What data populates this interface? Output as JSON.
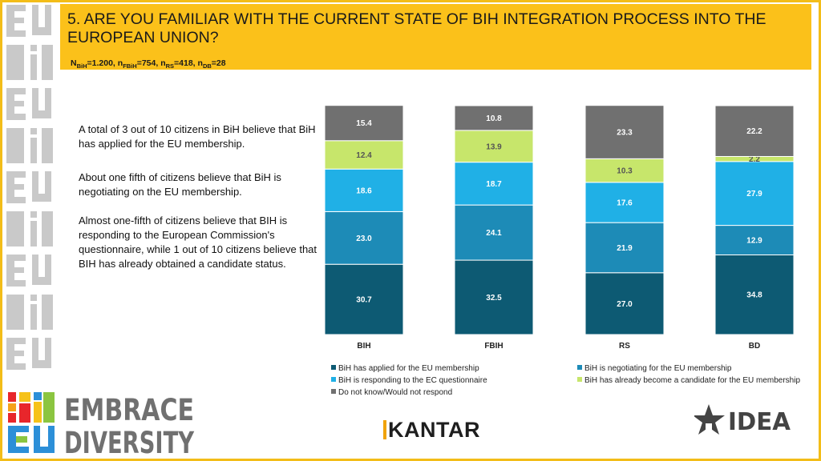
{
  "header": {
    "title": "5. ARE YOU FAMILIAR WITH THE CURRENT STATE OF BIH INTEGRATION PROCESS INTO THE EUROPEAN UNION?",
    "sample": {
      "n_bih_label": "N",
      "n_bih_sub": "BiH",
      "n_bih_value": "=1.200, ",
      "n_fbih_label": "n",
      "n_fbih_sub": "FBiH",
      "n_fbih_value": "=754, ",
      "n_rs_label": "n",
      "n_rs_sub": "RS",
      "n_rs_value": "=418, ",
      "n_db_label": "n",
      "n_db_sub": "DB",
      "n_db_value": "=28"
    }
  },
  "commentary": {
    "p1": "A total of 3 out of 10 citizens in BiH believe that BiH has applied for the EU membership.",
    "p2": "About one fifth of citizens believe that BiH is negotiating on the EU membership.",
    "p3": "Almost one-fifth of citizens believe that BIH is responding to the European Commission's questionnaire, while 1 out of 10 citizens believe that BIH has already obtained a candidate status."
  },
  "chart_data": {
    "type": "bar",
    "stacked": true,
    "orientation": "vertical",
    "categories": [
      "BIH",
      "FBIH",
      "RS",
      "BD"
    ],
    "ylim": [
      0,
      100
    ],
    "series": [
      {
        "name": "BiH has applied for the EU membership",
        "color": "#0d5a73",
        "values": [
          30.7,
          32.5,
          27.0,
          34.8
        ],
        "labels": [
          "30.7",
          "32.5",
          "27.0",
          "34.8"
        ]
      },
      {
        "name": "BiH is negotiating for the EU membership",
        "color": "#1d8bb7",
        "values": [
          23.0,
          24.1,
          21.9,
          12.9
        ],
        "labels": [
          "23.0",
          "24.1",
          "21.9",
          "12.9"
        ]
      },
      {
        "name": "BiH is responding to the EC questionnaire",
        "color": "#20b0e6",
        "values": [
          18.6,
          18.7,
          17.6,
          27.9
        ],
        "labels": [
          "18.6",
          "18.7",
          "17.6",
          "27.9"
        ]
      },
      {
        "name": "BiH has already become a candidate for the EU membership",
        "color": "#c7e66b",
        "values": [
          12.4,
          13.9,
          10.3,
          2.2
        ],
        "labels": [
          "12.4",
          "13.9",
          "10.3",
          "2.2"
        ]
      },
      {
        "name": "Do not know/Would not respond",
        "color": "#707070",
        "values": [
          15.4,
          10.8,
          23.3,
          22.2
        ],
        "labels": [
          "15.4",
          "10.8",
          "23.3",
          "22.2"
        ]
      }
    ],
    "legend_order": [
      0,
      1,
      2,
      3,
      4
    ]
  },
  "logos": {
    "embrace_line1": "EMBRACE",
    "embrace_line2": "DIVERSITY",
    "embrace_mark_top": "BiH",
    "embrace_mark_bottom": "EU",
    "kantar": "KANTAR",
    "ideal": "IDEA"
  },
  "colors": {
    "accent_yellow": "#fbc11a",
    "frame": "#f3bd18"
  }
}
